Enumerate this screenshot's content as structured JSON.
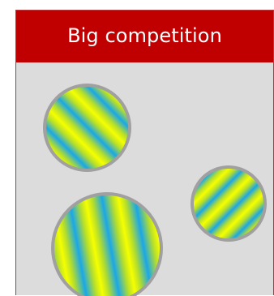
{
  "header": {
    "title": "Big competition"
  },
  "colors": {
    "header_background": "#c00000",
    "panel_background": "#dcdcdc",
    "patch_border": "#a0a0a0",
    "stripe_primary": "#1aa7e8",
    "stripe_secondary": "#f6ff00"
  },
  "patches": [
    {
      "name": "patch-1",
      "orientation": "diagonal"
    },
    {
      "name": "patch-2",
      "orientation": "near-vertical"
    },
    {
      "name": "patch-3",
      "orientation": "diagonal-opposite"
    }
  ]
}
